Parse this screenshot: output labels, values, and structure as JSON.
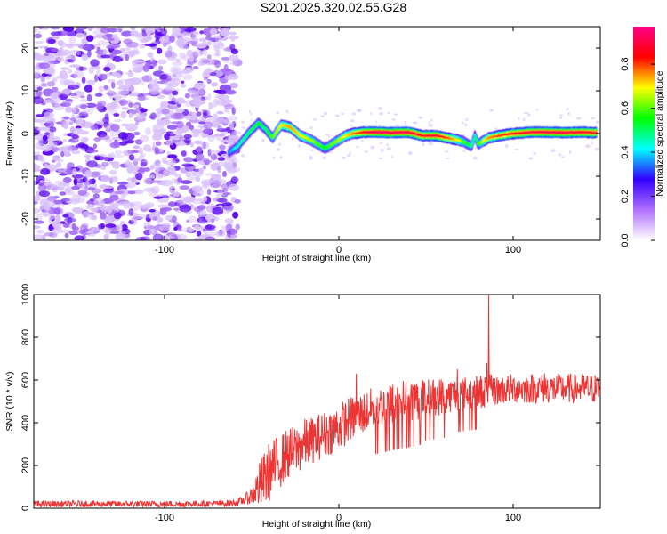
{
  "title": "S201.2025.320.02.55.G28",
  "chart_data": [
    {
      "type": "heatmap",
      "xlabel": "Height of straight line (km)",
      "ylabel": "Frequency (Hz)",
      "xlim": [
        -175,
        150
      ],
      "ylim": [
        -25,
        25
      ],
      "xticks": [
        -100,
        0,
        100
      ],
      "yticks": [
        -20,
        -10,
        0,
        10,
        20
      ],
      "colorbar": {
        "label": "Normalized spectral amplitude",
        "range": [
          0,
          0.97
        ],
        "ticks": [
          "0.0",
          "0.2",
          "0.4",
          "0.6",
          "0.8"
        ],
        "colors": [
          "#ffffff",
          "#b070ff",
          "#3300ff",
          "#00ffff",
          "#00ff00",
          "#ffff00",
          "#ff0000",
          "#ff0088"
        ]
      },
      "noise_region_x": [
        -175,
        -60
      ],
      "ridge": {
        "x": [
          -63,
          -58,
          -52,
          -46,
          -42,
          -38,
          -33,
          -28,
          -22,
          -16,
          -12,
          -8,
          -4,
          0,
          4,
          8,
          14,
          22,
          30,
          40,
          48,
          56,
          62,
          68,
          72,
          76,
          78,
          80,
          82,
          86,
          92,
          100,
          110,
          120,
          130,
          140,
          148
        ],
        "y": [
          -4.5,
          -3,
          0,
          2.5,
          1,
          -1,
          2,
          1.5,
          -0.5,
          -1.5,
          -2.5,
          -3.5,
          -2.5,
          -1.5,
          -0.5,
          0,
          0.3,
          0.3,
          0.2,
          0.3,
          -0.5,
          -0.5,
          -1,
          -1.5,
          -2,
          -3,
          -0.5,
          -2.5,
          -2,
          -1,
          -0.5,
          0,
          0.3,
          0.3,
          0.2,
          0.3,
          0.2
        ],
        "amplitude": [
          0.35,
          0.45,
          0.5,
          0.55,
          0.5,
          0.6,
          0.7,
          0.75,
          0.7,
          0.65,
          0.6,
          0.55,
          0.6,
          0.65,
          0.7,
          0.75,
          0.85,
          0.92,
          0.92,
          0.9,
          0.85,
          0.88,
          0.8,
          0.7,
          0.6,
          0.5,
          0.45,
          0.55,
          0.65,
          0.75,
          0.8,
          0.85,
          0.88,
          0.9,
          0.9,
          0.88,
          0.86
        ]
      }
    },
    {
      "type": "line",
      "xlabel": "Height of straight line (km)",
      "ylabel": "SNR (10 * v/v)",
      "xlim": [
        -175,
        150
      ],
      "ylim": [
        0,
        1000
      ],
      "xticks": [
        -100,
        0,
        100
      ],
      "yticks": [
        0,
        200,
        400,
        600,
        800,
        1000
      ],
      "series": [
        {
          "color": "#ee3333",
          "x": [
            -175,
            -150,
            -120,
            -90,
            -70,
            -60,
            -55,
            -50,
            -45,
            -40,
            -35,
            -30,
            -25,
            -20,
            -15,
            -10,
            -5,
            0,
            5,
            10,
            15,
            20,
            25,
            30,
            35,
            40,
            45,
            50,
            55,
            60,
            65,
            70,
            75,
            80,
            85,
            90,
            95,
            100,
            110,
            120,
            130,
            140,
            150
          ],
          "y": [
            20,
            20,
            20,
            20,
            22,
            25,
            35,
            60,
            110,
            170,
            210,
            250,
            270,
            300,
            320,
            340,
            360,
            380,
            410,
            430,
            450,
            470,
            480,
            490,
            500,
            505,
            510,
            515,
            520,
            525,
            530,
            535,
            540,
            545,
            550,
            550,
            555,
            560,
            560,
            560,
            560,
            560,
            560
          ],
          "spread": [
            15,
            15,
            15,
            15,
            15,
            15,
            20,
            40,
            120,
            140,
            130,
            120,
            120,
            120,
            110,
            110,
            110,
            110,
            110,
            100,
            100,
            100,
            100,
            100,
            100,
            100,
            100,
            90,
            90,
            90,
            80,
            80,
            80,
            80,
            80,
            70,
            70,
            70,
            70,
            70,
            70,
            70,
            70
          ],
          "peaks": [
            {
              "x": 86,
              "y": 1000
            },
            {
              "x": 85,
              "y": 680
            },
            {
              "x": 68,
              "y": 650
            },
            {
              "x": 118,
              "y": 630
            },
            {
              "x": 10,
              "y": 630
            }
          ]
        }
      ]
    }
  ]
}
